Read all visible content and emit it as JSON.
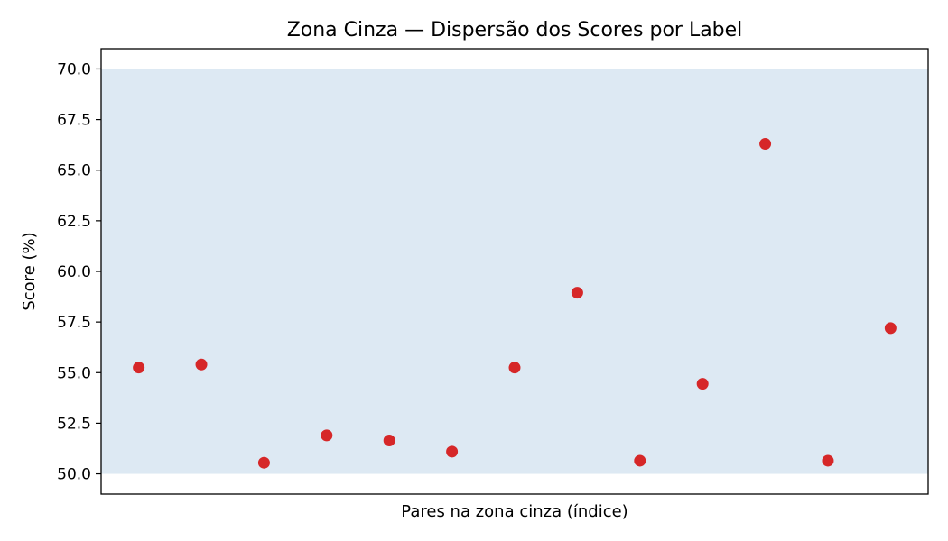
{
  "chart_data": {
    "type": "scatter",
    "title": "Zona Cinza — Dispersão dos Scores por Label",
    "xlabel": "Pares na zona cinza (índice)",
    "ylabel": "Score (%)",
    "ylim": [
      49.0,
      71.0
    ],
    "yticks": [
      "50.0",
      "52.5",
      "55.0",
      "57.5",
      "60.0",
      "62.5",
      "65.0",
      "67.5",
      "70.0"
    ],
    "xticks_visible": false,
    "grid": false,
    "band": {
      "from": 50.0,
      "to": 70.0,
      "color": "#dde9f3"
    },
    "point_color": "#d62728",
    "series": [
      {
        "x": [
          0,
          1,
          2,
          3,
          4,
          5,
          6,
          7,
          8,
          9,
          10,
          11,
          12
        ],
        "values": [
          55.25,
          55.4,
          50.55,
          51.9,
          51.65,
          51.1,
          55.25,
          58.95,
          50.65,
          54.45,
          66.3,
          50.65,
          57.2
        ]
      }
    ]
  }
}
